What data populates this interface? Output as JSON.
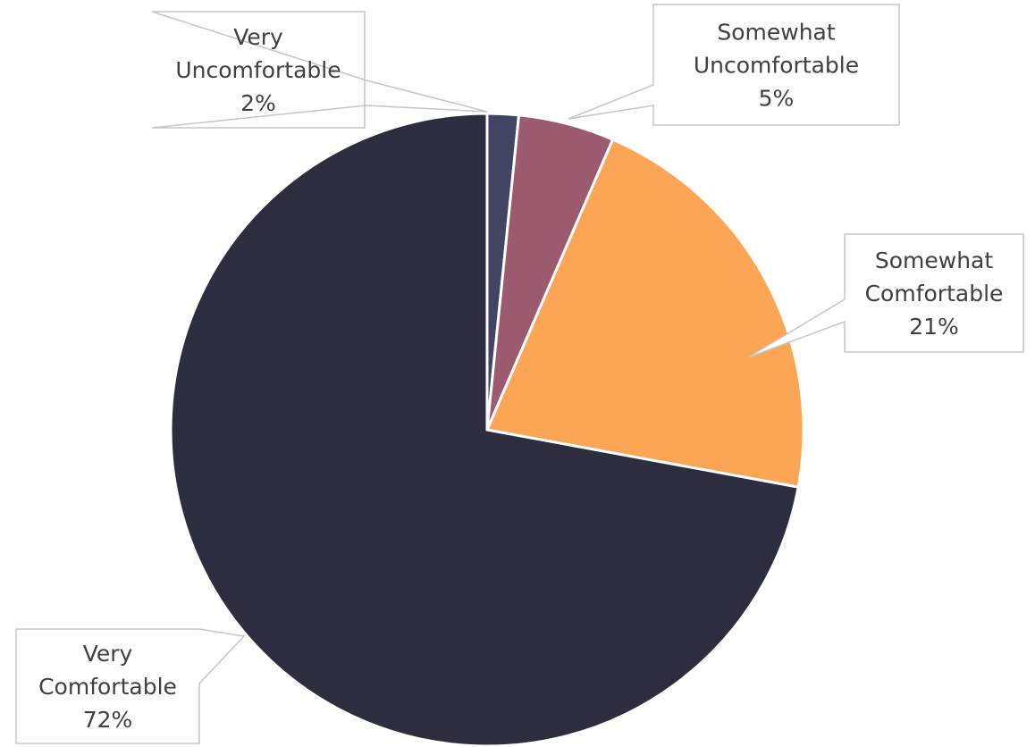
{
  "chart_data": {
    "type": "pie",
    "start_angle_deg": 0,
    "direction": "clockwise",
    "slices": [
      {
        "category": "Very Uncomfortable",
        "label_lines": [
          "Very",
          "Uncomfortable"
        ],
        "percent_label": "2%",
        "value": 1.6,
        "color": "#414563"
      },
      {
        "category": "Somewhat Uncomfortable",
        "label_lines": [
          "Somewhat",
          "Uncomfortable"
        ],
        "percent_label": "5%",
        "value": 4.9,
        "color": "#9c5a6e"
      },
      {
        "category": "Somewhat Comfortable",
        "label_lines": [
          "Somewhat",
          "Comfortable"
        ],
        "percent_label": "21%",
        "value": 21.4,
        "color": "#fca555"
      },
      {
        "category": "Very Comfortable",
        "label_lines": [
          "Very",
          "Comfortable"
        ],
        "percent_label": "72%",
        "value": 72.1,
        "color": "#2d2d40"
      }
    ]
  }
}
